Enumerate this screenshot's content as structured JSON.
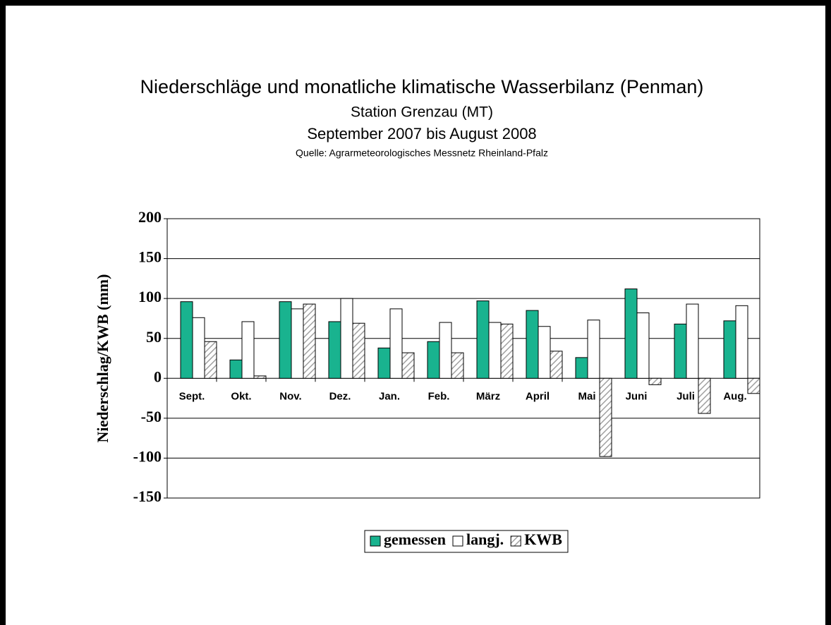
{
  "chart_data": {
    "type": "bar",
    "title": "Niederschläge und monatliche klimatische Wasserbilanz (Penman)",
    "subtitle": [
      "Station Grenzau (MT)",
      "September 2007 bis August 2008"
    ],
    "source": "Quelle: Agrarmeteorologisches Messnetz Rheinland-Pfalz",
    "ylabel": "Niederschlag/KWB (mm)",
    "categories": [
      "Sept.",
      "Okt.",
      "Nov.",
      "Dez.",
      "Jan.",
      "Feb.",
      "März",
      "April",
      "Mai",
      "Juni",
      "Juli",
      "Aug."
    ],
    "series": [
      {
        "name": "gemessen",
        "color": "#19b38f",
        "values": [
          96,
          23,
          96,
          71,
          38,
          46,
          97,
          85,
          26,
          112,
          68,
          72
        ]
      },
      {
        "name": "langj.",
        "color": "#ffffff",
        "values": [
          76,
          71,
          87,
          100,
          87,
          70,
          70,
          65,
          73,
          82,
          93,
          91
        ]
      },
      {
        "name": "KWB",
        "color": "#a0a0a0",
        "pattern": "hatch",
        "values": [
          46,
          3,
          93,
          69,
          32,
          32,
          68,
          34,
          -98,
          -8,
          -44,
          -19
        ]
      }
    ],
    "ylim": [
      -150,
      200
    ],
    "yticks": [
      -150,
      -100,
      -50,
      0,
      50,
      100,
      150,
      200
    ],
    "grid": true,
    "legend": "bottom"
  }
}
